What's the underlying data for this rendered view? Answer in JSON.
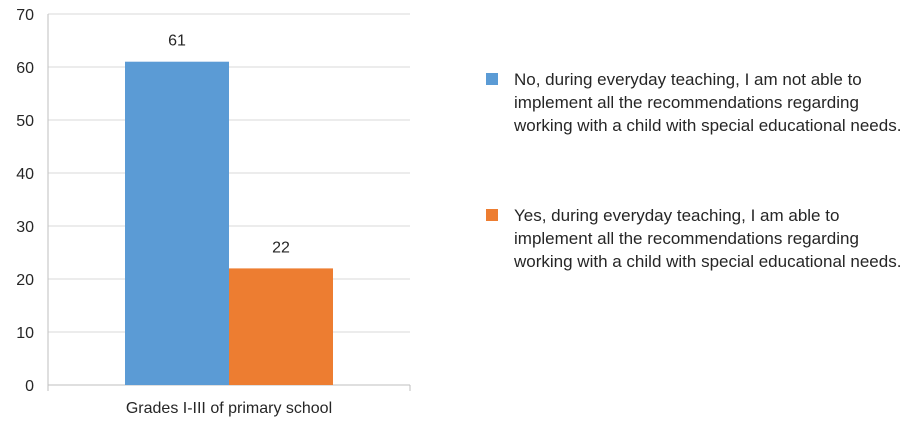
{
  "chart_data": {
    "type": "bar",
    "categories": [
      "Grades I-III of primary school"
    ],
    "series": [
      {
        "name": "No, during everyday teaching, I am not able to implement all the recommendations regarding working with a child with special educational needs.",
        "values": [
          61
        ],
        "color": "#5B9BD5"
      },
      {
        "name": "Yes, during everyday teaching, I am  able to implement all the recommendations regarding working with a child with special educational needs.",
        "values": [
          22
        ],
        "color": "#ED7D31"
      }
    ],
    "data_labels": [
      "61",
      "22"
    ],
    "ylim": [
      0,
      70
    ],
    "yticks": [
      "0",
      "10",
      "20",
      "30",
      "40",
      "50",
      "60",
      "70"
    ],
    "grid": true,
    "legend_position": "right",
    "title": "",
    "xlabel": "",
    "ylabel": ""
  }
}
